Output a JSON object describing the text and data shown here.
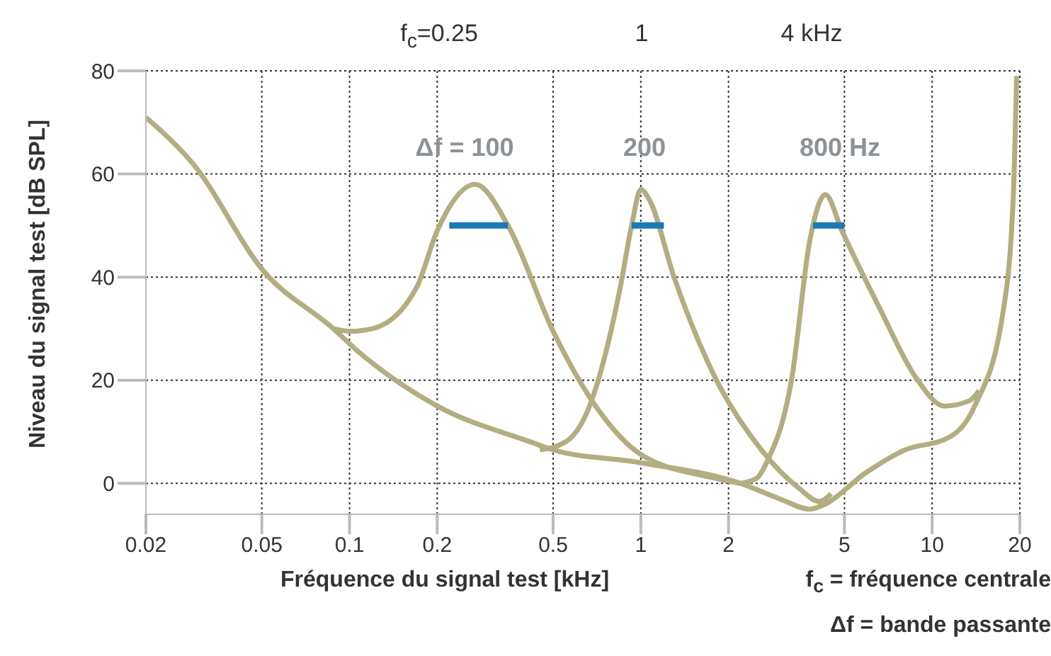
{
  "chart_data": {
    "type": "line",
    "xlabel": "Fréquence du signal test [kHz]",
    "ylabel": "Niveau du signal test [dB SPL]",
    "log": "x",
    "xlim": [
      0.02,
      20
    ],
    "xticks": [
      0.02,
      0.05,
      0.1,
      0.2,
      0.5,
      1,
      2,
      5,
      10,
      20
    ],
    "ylim": [
      -6,
      80
    ],
    "yticks": [
      0,
      20,
      40,
      60,
      80
    ],
    "grid": true,
    "marker": "none",
    "line_style": "solid",
    "series": [
      {
        "color": "#b3ad82",
        "x": [
          0.02,
          0.029,
          0.051,
          0.088,
          0.105,
          0.2,
          0.42,
          0.5,
          1.0,
          2.2,
          3.0,
          3.8,
          4.3,
          5.9,
          8.0,
          11.5,
          14.0,
          17.6,
          19.0,
          19.5
        ],
        "values": [
          71,
          62,
          41,
          30,
          26,
          15,
          8,
          6.5,
          4,
          0,
          -3,
          -5,
          -4,
          2,
          6.4,
          9,
          15,
          34,
          56,
          79
        ]
      },
      {
        "color": "#b3ad82",
        "x": [
          0.088,
          0.1,
          0.12,
          0.17,
          0.2,
          0.27,
          0.35,
          0.5,
          0.72,
          1.0,
          1.8,
          2.2
        ],
        "values": [
          30,
          29.5,
          30,
          38,
          49,
          58,
          50,
          29.5,
          14,
          5.6,
          1,
          0
        ]
      },
      {
        "color": "#b3ad82",
        "x": [
          0.45,
          0.55,
          0.65,
          0.85,
          0.93,
          1.0,
          1.07,
          1.3,
          1.8,
          2.6,
          3.5,
          4.1,
          4.5
        ],
        "values": [
          6.5,
          8,
          13.5,
          38,
          50,
          57,
          55,
          40,
          20.5,
          6.4,
          -1,
          -3.5,
          -2
        ]
      },
      {
        "color": "#b3ad82",
        "x": [
          2.2,
          2.5,
          2.7,
          3.3,
          3.8,
          4.3,
          4.9,
          6.6,
          8.8,
          11,
          13.4,
          14.5
        ],
        "values": [
          0,
          1,
          4,
          20.5,
          47,
          56,
          49,
          34,
          20.5,
          15,
          16,
          18
        ]
      },
      {
        "color": "#1a7ab8",
        "x": [
          0.22,
          0.35
        ],
        "values": [
          50,
          50
        ]
      },
      {
        "color": "#1a7ab8",
        "x": [
          0.93,
          1.2
        ],
        "values": [
          50,
          50
        ]
      },
      {
        "color": "#1a7ab8",
        "x": [
          3.9,
          5.0
        ],
        "values": [
          50,
          50
        ]
      }
    ],
    "annotations": [
      "f$_{c}$=0.25",
      "1",
      "4 kHz",
      "Δf = 100",
      "200",
      "800 Hz",
      "f$_{c}$ = fréquence centrale",
      "Δf = bande passante"
    ]
  }
}
